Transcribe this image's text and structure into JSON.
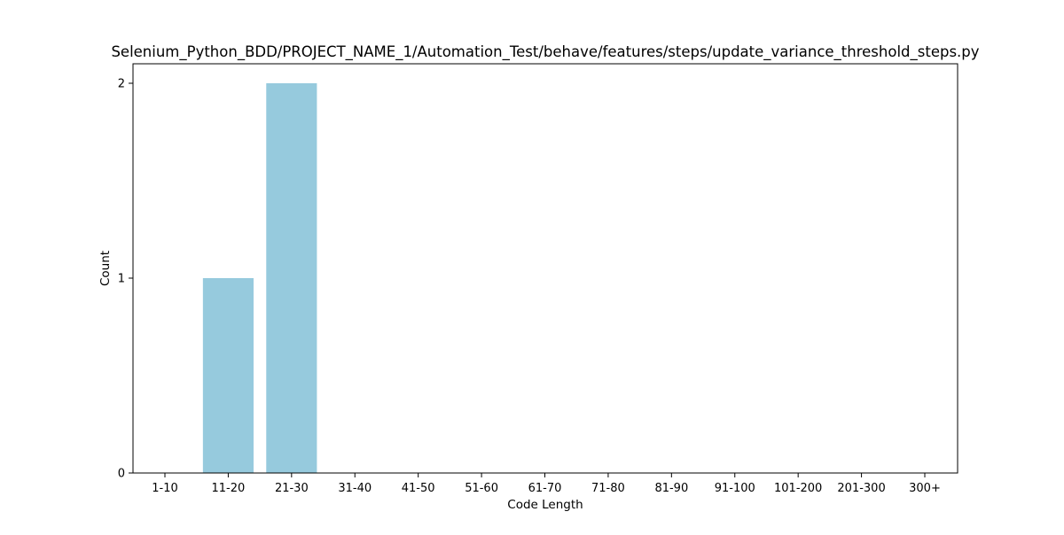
{
  "chart_data": {
    "type": "bar",
    "title": "Selenium_Python_BDD/PROJECT_NAME_1/Automation_Test/behave/features/steps/update_variance_threshold_steps.py",
    "xlabel": "Code Length",
    "ylabel": "Count",
    "categories": [
      "1-10",
      "11-20",
      "21-30",
      "31-40",
      "41-50",
      "51-60",
      "61-70",
      "71-80",
      "81-90",
      "91-100",
      "101-200",
      "201-300",
      "300+"
    ],
    "values": [
      0,
      1,
      2,
      0,
      0,
      0,
      0,
      0,
      0,
      0,
      0,
      0,
      0
    ],
    "ylim": [
      0,
      2.1
    ],
    "yticks": [
      0,
      1,
      2
    ],
    "grid": false,
    "bar_color": "#96cadd"
  }
}
